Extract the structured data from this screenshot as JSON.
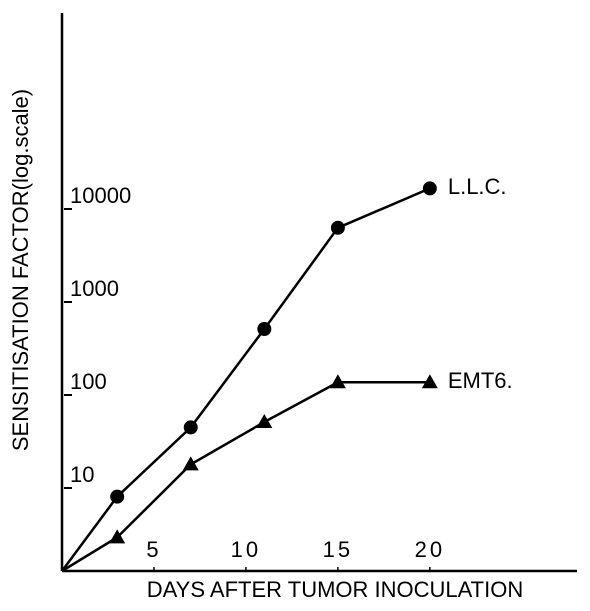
{
  "chart_data": {
    "type": "line",
    "y_label": "SENSITISATION FACTOR(log.scale)",
    "x_label": "DAYS AFTER TUMOR INOCULATION",
    "xlim": [
      0,
      28
    ],
    "xticks": [
      5,
      10,
      15,
      20
    ],
    "ylim": [
      1,
      1000000
    ],
    "yticks": [
      10,
      100,
      1000,
      10000
    ],
    "log_y": true,
    "grid": false,
    "unmarked_origin": true,
    "x": [
      0,
      3,
      7,
      11,
      15,
      20
    ],
    "series": [
      {
        "name": "L.L.C.",
        "color": "#000000",
        "marker": "circle",
        "values": [
          1,
          6.3,
          35,
          400,
          4900,
          13000
        ]
      },
      {
        "name": "EMT6.",
        "color": "#000000",
        "marker": "triangle",
        "values": [
          1,
          2.3,
          14,
          40,
          107,
          107
        ]
      }
    ]
  }
}
